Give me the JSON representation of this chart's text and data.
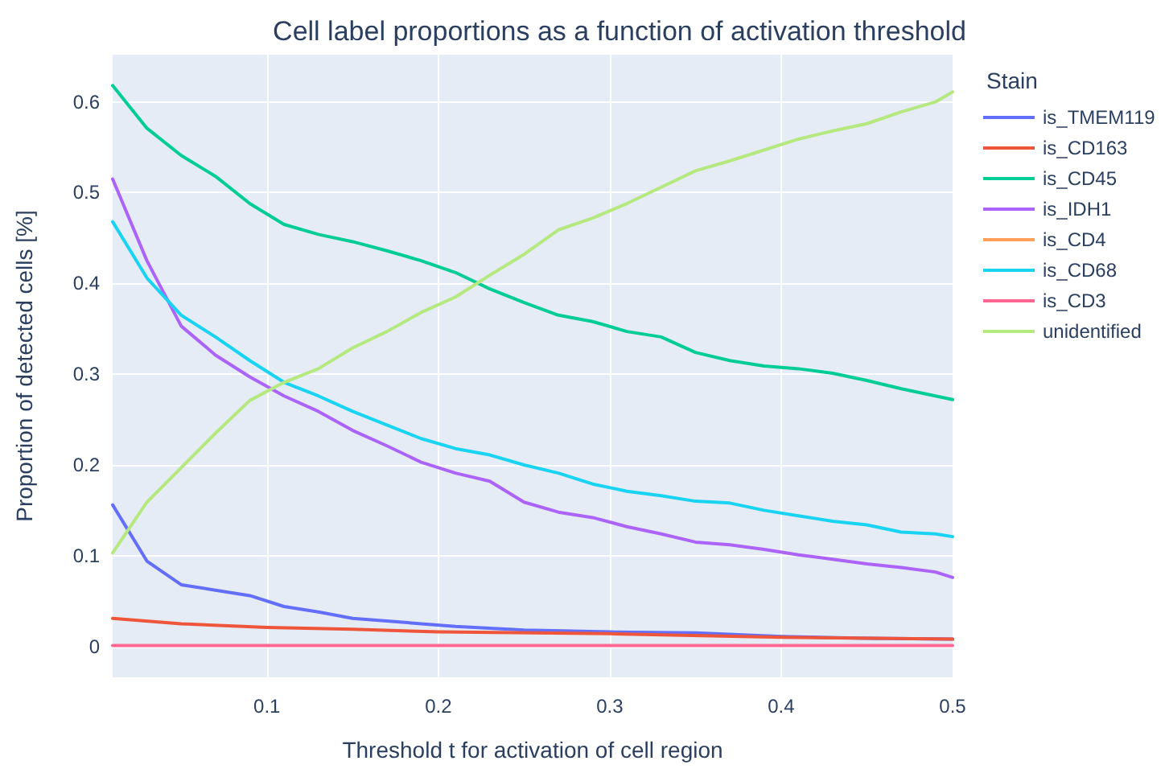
{
  "chart_data": {
    "type": "line",
    "title": "Cell label proportions as a function of activation threshold",
    "xlabel": "Threshold t for activation of cell region",
    "ylabel": "Proportion of detected cells [%]",
    "legend_title": "Stain",
    "legend": "right",
    "grid": true,
    "marker": "none",
    "line_style": "solid",
    "x": [
      0.01,
      0.03,
      0.05,
      0.07,
      0.09,
      0.11,
      0.13,
      0.15,
      0.17,
      0.19,
      0.21,
      0.23,
      0.25,
      0.27,
      0.29,
      0.31,
      0.33,
      0.35,
      0.37,
      0.39,
      0.41,
      0.43,
      0.45,
      0.47,
      0.49,
      0.5
    ],
    "xlim": [
      0.01,
      0.5
    ],
    "xticks": [
      0.1,
      0.2,
      0.3,
      0.4,
      0.5
    ],
    "ylim": [
      -0.034,
      0.652
    ],
    "yticks": [
      0,
      0.1,
      0.2,
      0.3,
      0.4,
      0.5,
      0.6
    ],
    "series": [
      {
        "name": "is_TMEM119",
        "color": "#636efa",
        "x": [
          0.01,
          0.03,
          0.05,
          0.07,
          0.09,
          0.11,
          0.13,
          0.15,
          0.17,
          0.19,
          0.21,
          0.25,
          0.3,
          0.35,
          0.4,
          0.45,
          0.5
        ],
        "values": [
          0.156,
          0.094,
          0.068,
          0.062,
          0.056,
          0.044,
          0.038,
          0.031,
          0.028,
          0.025,
          0.022,
          0.018,
          0.016,
          0.015,
          0.011,
          0.009,
          0.008
        ]
      },
      {
        "name": "is_CD163",
        "color": "#ef553b",
        "x": [
          0.01,
          0.05,
          0.1,
          0.15,
          0.2,
          0.3,
          0.4,
          0.5
        ],
        "values": [
          0.031,
          0.025,
          0.021,
          0.019,
          0.016,
          0.014,
          0.01,
          0.008
        ]
      },
      {
        "name": "is_CD45",
        "color": "#00cc96",
        "values": [
          0.618,
          0.571,
          0.541,
          0.518,
          0.488,
          0.465,
          0.454,
          0.446,
          0.436,
          0.425,
          0.412,
          0.394,
          0.379,
          0.365,
          0.358,
          0.347,
          0.341,
          0.324,
          0.315,
          0.309,
          0.306,
          0.301,
          0.293,
          0.284,
          0.276,
          0.272
        ]
      },
      {
        "name": "is_IDH1",
        "color": "#ab63fa",
        "values": [
          0.515,
          0.425,
          0.353,
          0.321,
          0.297,
          0.276,
          0.259,
          0.238,
          0.221,
          0.203,
          0.191,
          0.182,
          0.159,
          0.148,
          0.142,
          0.132,
          0.124,
          0.115,
          0.112,
          0.107,
          0.101,
          0.096,
          0.091,
          0.087,
          0.082,
          0.076
        ]
      },
      {
        "name": "is_CD4",
        "color": "#ffa15a",
        "values": [
          null,
          null,
          null,
          null,
          null,
          null,
          null,
          null,
          null,
          null,
          null,
          null,
          null,
          null,
          null,
          null,
          null,
          null,
          null,
          null,
          null,
          null,
          null,
          null,
          null,
          null
        ]
      },
      {
        "name": "is_CD68",
        "color": "#19d3f3",
        "values": [
          0.468,
          0.406,
          0.365,
          0.341,
          0.315,
          0.291,
          0.276,
          0.259,
          0.244,
          0.229,
          0.218,
          0.211,
          0.2,
          0.191,
          0.179,
          0.171,
          0.166,
          0.16,
          0.158,
          0.15,
          0.144,
          0.138,
          0.134,
          0.126,
          0.124,
          0.121
        ]
      },
      {
        "name": "is_CD3",
        "color": "#ff6692",
        "x": [
          0.01,
          0.5
        ],
        "values": [
          0.001,
          0.001
        ]
      },
      {
        "name": "unidentified",
        "color": "#b6e880",
        "values": [
          0.103,
          0.159,
          0.197,
          0.235,
          0.271,
          0.291,
          0.306,
          0.329,
          0.347,
          0.368,
          0.385,
          0.409,
          0.432,
          0.459,
          0.472,
          0.488,
          0.506,
          0.524,
          0.535,
          0.547,
          0.559,
          0.568,
          0.576,
          0.589,
          0.6,
          0.611
        ]
      }
    ]
  }
}
